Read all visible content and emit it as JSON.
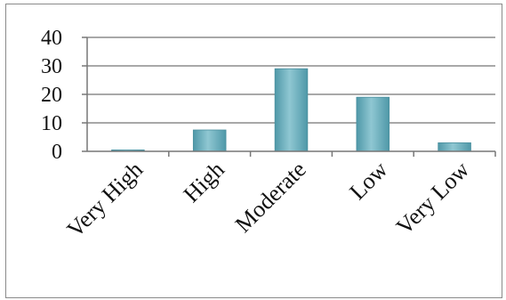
{
  "chart_data": {
    "type": "bar",
    "categories": [
      "Very High",
      "High",
      "Moderate",
      "Low",
      "Very Low"
    ],
    "values": [
      0.5,
      7.5,
      29,
      19,
      3
    ],
    "yticks": [
      0,
      10,
      20,
      30,
      40
    ],
    "ylim": [
      0,
      40
    ],
    "grid": true,
    "legend": "none",
    "bar_color": "#5fa9b8",
    "bar_highlight": "#a9d6df",
    "gridline_color": "#8c8c8c"
  }
}
